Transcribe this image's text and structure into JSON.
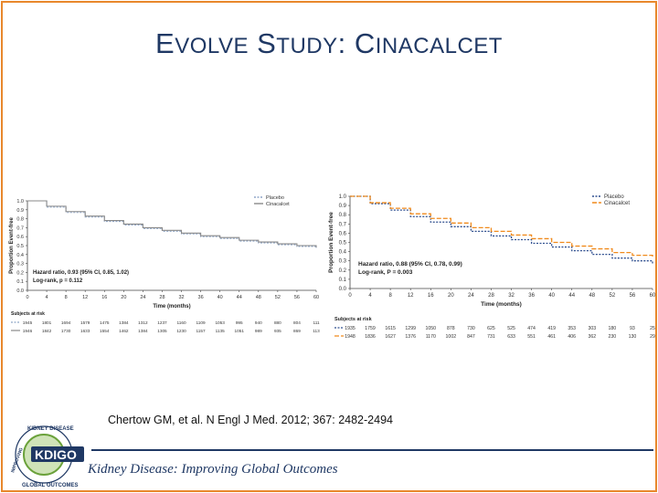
{
  "slide": {
    "title_first": "E",
    "title_first_rest": "VOLVE",
    "title_second": "S",
    "title_second_rest": "TUDY",
    "title_colon": ":",
    "title_third": "C",
    "title_third_rest": "INACALCET",
    "citation": "Chertow GM, et al. N Engl J Med. 2012; 367: 2482-2494",
    "footer": "Kidney Disease: Improving Global Outcomes",
    "logo_text": "KDIGO",
    "logo_ring_top": "KIDNEY DISEASE",
    "logo_ring_bottom": "GLOBAL OUTCOMES",
    "logo_ring_left": "IMPROVING"
  },
  "chart_data": [
    {
      "type": "line",
      "xlabel": "Time (months)",
      "ylabel": "Proportion Event-free",
      "xlim": [
        0,
        60
      ],
      "ylim": [
        0,
        1.0
      ],
      "xticks": [
        0,
        4,
        8,
        12,
        16,
        20,
        24,
        28,
        32,
        36,
        40,
        44,
        48,
        52,
        56,
        60
      ],
      "yticks": [
        "0.0",
        "0.1",
        "0.2",
        "0.3",
        "0.4",
        "0.5",
        "0.6",
        "0.7",
        "0.8",
        "0.9",
        "1.0"
      ],
      "legend": [
        "Placebo",
        "Cinacalcet"
      ],
      "annotation": [
        "Hazard ratio, 0.93 (95% CI, 0.85, 1.02)",
        "Log-rank, p = 0.112"
      ],
      "colors": {
        "placebo": "#8fa6c8",
        "cinacalcet": "#8a8a8a"
      },
      "series": [
        {
          "name": "Placebo",
          "x": [
            0,
            4,
            8,
            12,
            16,
            20,
            24,
            28,
            32,
            36,
            40,
            44,
            48,
            52,
            56,
            60
          ],
          "values": [
            1.0,
            0.93,
            0.87,
            0.82,
            0.77,
            0.73,
            0.69,
            0.66,
            0.63,
            0.6,
            0.58,
            0.55,
            0.53,
            0.51,
            0.49,
            0.47
          ]
        },
        {
          "name": "Cinacalcet",
          "x": [
            0,
            4,
            8,
            12,
            16,
            20,
            24,
            28,
            32,
            36,
            40,
            44,
            48,
            52,
            56,
            60
          ],
          "values": [
            1.0,
            0.94,
            0.88,
            0.83,
            0.78,
            0.74,
            0.7,
            0.67,
            0.64,
            0.61,
            0.59,
            0.56,
            0.54,
            0.52,
            0.5,
            0.48
          ]
        }
      ],
      "risk_table": {
        "label": "Subjects at risk",
        "rows": [
          [
            "1945",
            "1801",
            "1694",
            "1579",
            "1475",
            "1384",
            "1312",
            "1237",
            "1160",
            "1109",
            "1053",
            "995",
            "940",
            "880",
            "804",
            "111"
          ],
          [
            "1946",
            "1842",
            "1730",
            "1633",
            "1554",
            "1462",
            "1384",
            "1305",
            "1230",
            "1157",
            "1135",
            "1051",
            "989",
            "935",
            "869",
            "113"
          ]
        ]
      }
    },
    {
      "type": "line",
      "xlabel": "Time (months)",
      "ylabel": "Proportion Event-free",
      "xlim": [
        0,
        60
      ],
      "ylim": [
        0,
        1.0
      ],
      "xticks": [
        0,
        4,
        8,
        12,
        16,
        20,
        24,
        28,
        32,
        36,
        40,
        44,
        48,
        52,
        56,
        60
      ],
      "yticks": [
        "0.0",
        "0.1",
        "0.2",
        "0.3",
        "0.4",
        "0.5",
        "0.6",
        "0.7",
        "0.8",
        "0.9",
        "1.0"
      ],
      "legend": [
        "Placebo",
        "Cinacalcet"
      ],
      "annotation": [
        "Hazard ratio, 0.88 (95% CI, 0.78, 0.99)",
        "Log-rank, P = 0.003"
      ],
      "colors": {
        "placebo": "#2f4f8f",
        "cinacalcet": "#f08a1c"
      },
      "series": [
        {
          "name": "Placebo",
          "x": [
            0,
            4,
            8,
            12,
            16,
            20,
            24,
            28,
            32,
            36,
            40,
            44,
            48,
            52,
            56,
            60
          ],
          "values": [
            1.0,
            0.92,
            0.85,
            0.78,
            0.72,
            0.67,
            0.62,
            0.57,
            0.53,
            0.49,
            0.45,
            0.41,
            0.37,
            0.33,
            0.3,
            0.27
          ]
        },
        {
          "name": "Cinacalcet",
          "x": [
            0,
            4,
            8,
            12,
            16,
            20,
            24,
            28,
            32,
            36,
            40,
            44,
            48,
            52,
            56,
            60
          ],
          "values": [
            1.0,
            0.93,
            0.87,
            0.81,
            0.76,
            0.71,
            0.66,
            0.62,
            0.58,
            0.54,
            0.5,
            0.46,
            0.43,
            0.39,
            0.36,
            0.33
          ]
        }
      ],
      "risk_table": {
        "label": "Subjects at risk",
        "rows": [
          [
            "1935",
            "1759",
            "1615",
            "1299",
            "1050",
            "878",
            "730",
            "625",
            "525",
            "474",
            "419",
            "353",
            "303",
            "180",
            "93",
            "25"
          ],
          [
            "1948",
            "1836",
            "1627",
            "1376",
            "1170",
            "1002",
            "847",
            "731",
            "633",
            "551",
            "461",
            "406",
            "362",
            "230",
            "130",
            "29"
          ]
        ]
      }
    }
  ]
}
